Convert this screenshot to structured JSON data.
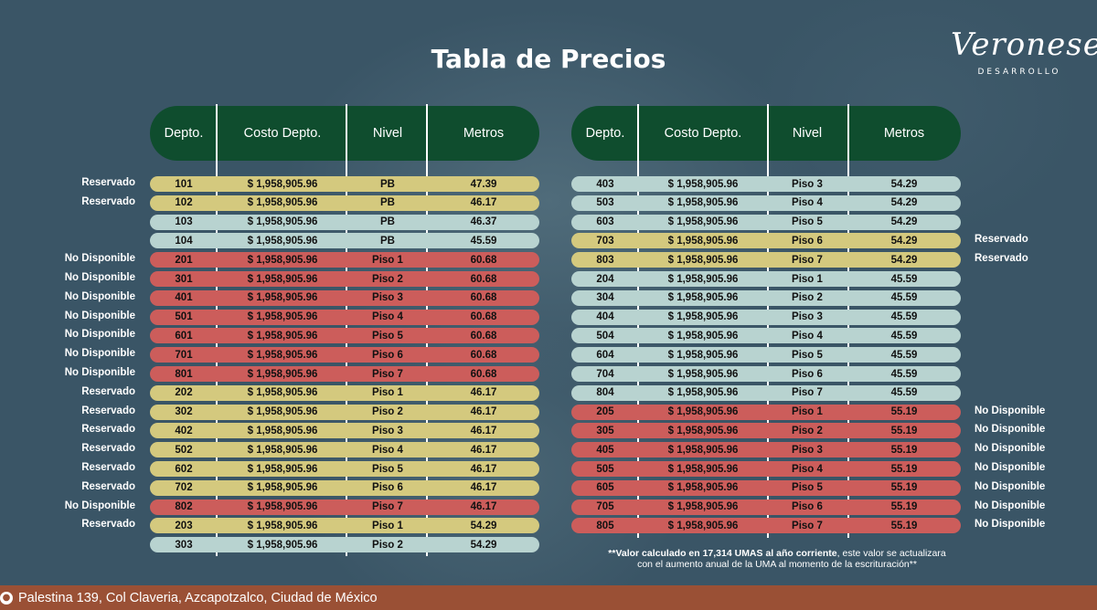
{
  "title": "Tabla de Precios",
  "logo": {
    "script": "Veronese",
    "sub": "DESARROLLO"
  },
  "headers": [
    "Depto.",
    "Costo Depto.",
    "Nivel",
    "Metros"
  ],
  "colors": {
    "yellow": "#d4c97e",
    "blue": "#b8d3d0",
    "red": "#cc5d5b",
    "header": "#0f4d2e",
    "footer": "#9a5035"
  },
  "left_rows": [
    {
      "status": "Reservado",
      "depto": "101",
      "costo": "$ 1,958,905.96",
      "nivel": "PB",
      "metros": "47.39",
      "color": "yellow"
    },
    {
      "status": "Reservado",
      "depto": "102",
      "costo": "$ 1,958,905.96",
      "nivel": "PB",
      "metros": "46.17",
      "color": "yellow"
    },
    {
      "status": "",
      "depto": "103",
      "costo": "$ 1,958,905.96",
      "nivel": "PB",
      "metros": "46.37",
      "color": "blue"
    },
    {
      "status": "",
      "depto": "104",
      "costo": "$ 1,958,905.96",
      "nivel": "PB",
      "metros": "45.59",
      "color": "blue"
    },
    {
      "status": "No Disponible",
      "depto": "201",
      "costo": "$ 1,958,905.96",
      "nivel": "Piso 1",
      "metros": "60.68",
      "color": "red"
    },
    {
      "status": "No Disponible",
      "depto": "301",
      "costo": "$ 1,958,905.96",
      "nivel": "Piso 2",
      "metros": "60.68",
      "color": "red"
    },
    {
      "status": "No Disponible",
      "depto": "401",
      "costo": "$ 1,958,905.96",
      "nivel": "Piso 3",
      "metros": "60.68",
      "color": "red"
    },
    {
      "status": "No Disponible",
      "depto": "501",
      "costo": "$ 1,958,905.96",
      "nivel": "Piso 4",
      "metros": "60.68",
      "color": "red"
    },
    {
      "status": "No Disponible",
      "depto": "601",
      "costo": "$ 1,958,905.96",
      "nivel": "Piso 5",
      "metros": "60.68",
      "color": "red"
    },
    {
      "status": "No Disponible",
      "depto": "701",
      "costo": "$ 1,958,905.96",
      "nivel": "Piso 6",
      "metros": "60.68",
      "color": "red"
    },
    {
      "status": "No Disponible",
      "depto": "801",
      "costo": "$ 1,958,905.96",
      "nivel": "Piso 7",
      "metros": "60.68",
      "color": "red"
    },
    {
      "status": "Reservado",
      "depto": "202",
      "costo": "$ 1,958,905.96",
      "nivel": "Piso 1",
      "metros": "46.17",
      "color": "yellow"
    },
    {
      "status": "Reservado",
      "depto": "302",
      "costo": "$ 1,958,905.96",
      "nivel": "Piso 2",
      "metros": "46.17",
      "color": "yellow"
    },
    {
      "status": "Reservado",
      "depto": "402",
      "costo": "$ 1,958,905.96",
      "nivel": "Piso 3",
      "metros": "46.17",
      "color": "yellow"
    },
    {
      "status": "Reservado",
      "depto": "502",
      "costo": "$ 1,958,905.96",
      "nivel": "Piso 4",
      "metros": "46.17",
      "color": "yellow"
    },
    {
      "status": "Reservado",
      "depto": "602",
      "costo": "$ 1,958,905.96",
      "nivel": "Piso 5",
      "metros": "46.17",
      "color": "yellow"
    },
    {
      "status": "Reservado",
      "depto": "702",
      "costo": "$ 1,958,905.96",
      "nivel": "Piso 6",
      "metros": "46.17",
      "color": "yellow"
    },
    {
      "status": "No Disponible",
      "depto": "802",
      "costo": "$ 1,958,905.96",
      "nivel": "Piso 7",
      "metros": "46.17",
      "color": "red"
    },
    {
      "status": "Reservado",
      "depto": "203",
      "costo": "$ 1,958,905.96",
      "nivel": "Piso 1",
      "metros": "54.29",
      "color": "yellow"
    },
    {
      "status": "",
      "depto": "303",
      "costo": "$ 1,958,905.96",
      "nivel": "Piso 2",
      "metros": "54.29",
      "color": "blue"
    }
  ],
  "right_rows": [
    {
      "status": "",
      "depto": "403",
      "costo": "$ 1,958,905.96",
      "nivel": "Piso 3",
      "metros": "54.29",
      "color": "blue"
    },
    {
      "status": "",
      "depto": "503",
      "costo": "$ 1,958,905.96",
      "nivel": "Piso 4",
      "metros": "54.29",
      "color": "blue"
    },
    {
      "status": "",
      "depto": "603",
      "costo": "$ 1,958,905.96",
      "nivel": "Piso 5",
      "metros": "54.29",
      "color": "blue"
    },
    {
      "status": "Reservado",
      "depto": "703",
      "costo": "$ 1,958,905.96",
      "nivel": "Piso 6",
      "metros": "54.29",
      "color": "yellow"
    },
    {
      "status": "Reservado",
      "depto": "803",
      "costo": "$ 1,958,905.96",
      "nivel": "Piso 7",
      "metros": "54.29",
      "color": "yellow"
    },
    {
      "status": "",
      "depto": "204",
      "costo": "$ 1,958,905.96",
      "nivel": "Piso 1",
      "metros": "45.59",
      "color": "blue"
    },
    {
      "status": "",
      "depto": "304",
      "costo": "$ 1,958,905.96",
      "nivel": "Piso 2",
      "metros": "45.59",
      "color": "blue"
    },
    {
      "status": "",
      "depto": "404",
      "costo": "$ 1,958,905.96",
      "nivel": "Piso 3",
      "metros": "45.59",
      "color": "blue"
    },
    {
      "status": "",
      "depto": "504",
      "costo": "$ 1,958,905.96",
      "nivel": "Piso 4",
      "metros": "45.59",
      "color": "blue"
    },
    {
      "status": "",
      "depto": "604",
      "costo": "$ 1,958,905.96",
      "nivel": "Piso 5",
      "metros": "45.59",
      "color": "blue"
    },
    {
      "status": "",
      "depto": "704",
      "costo": "$ 1,958,905.96",
      "nivel": "Piso 6",
      "metros": "45.59",
      "color": "blue"
    },
    {
      "status": "",
      "depto": "804",
      "costo": "$ 1,958,905.96",
      "nivel": "Piso 7",
      "metros": "45.59",
      "color": "blue"
    },
    {
      "status": "No Disponible",
      "depto": "205",
      "costo": "$ 1,958,905.96",
      "nivel": "Piso 1",
      "metros": "55.19",
      "color": "red"
    },
    {
      "status": "No Disponible",
      "depto": "305",
      "costo": "$ 1,958,905.96",
      "nivel": "Piso 2",
      "metros": "55.19",
      "color": "red"
    },
    {
      "status": "No Disponible",
      "depto": "405",
      "costo": "$ 1,958,905.96",
      "nivel": "Piso 3",
      "metros": "55.19",
      "color": "red"
    },
    {
      "status": "No Disponible",
      "depto": "505",
      "costo": "$ 1,958,905.96",
      "nivel": "Piso 4",
      "metros": "55.19",
      "color": "red"
    },
    {
      "status": "No Disponible",
      "depto": "605",
      "costo": "$ 1,958,905.96",
      "nivel": "Piso 5",
      "metros": "55.19",
      "color": "red"
    },
    {
      "status": "No Disponible",
      "depto": "705",
      "costo": "$ 1,958,905.96",
      "nivel": "Piso 6",
      "metros": "55.19",
      "color": "red"
    },
    {
      "status": "No Disponible",
      "depto": "805",
      "costo": "$ 1,958,905.96",
      "nivel": "Piso 7",
      "metros": "55.19",
      "color": "red"
    }
  ],
  "note": {
    "bold": "**Valor calculado en 17,314 UMAS al año corriente",
    "rest": ", este valor se actualizara",
    "line2": "con el aumento anual de la UMA al momento de la escrituración**"
  },
  "footer": {
    "address": "Palestina 139, Col Claveria, Azcapotzalco, Ciudad de México"
  }
}
